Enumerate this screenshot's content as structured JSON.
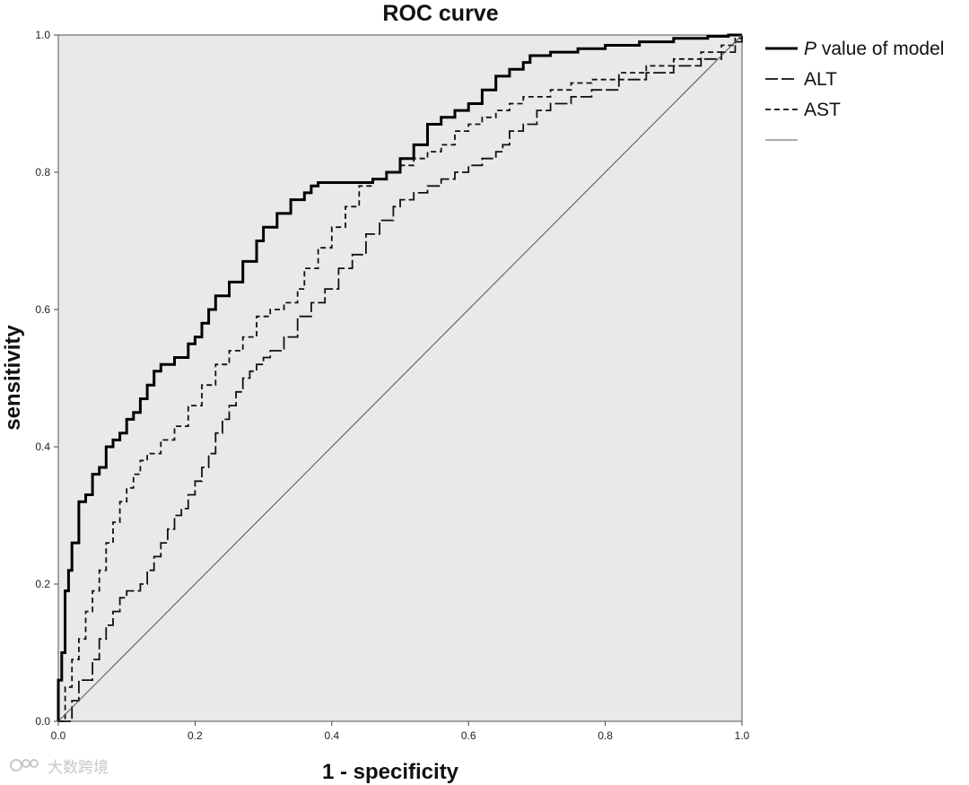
{
  "chart_data": {
    "type": "line",
    "title": "ROC curve",
    "xlabel": "1 - specificity",
    "ylabel": "sensitivity",
    "xlim": [
      0.0,
      1.0
    ],
    "ylim": [
      0.0,
      1.0
    ],
    "xticks": [
      "0.0",
      "0.2",
      "0.4",
      "0.6",
      "0.8",
      "1.0"
    ],
    "yticks": [
      "0.0",
      "0.2",
      "0.4",
      "0.6",
      "0.8",
      "1.0"
    ],
    "grid": false,
    "legend_position": "outside-right-top",
    "series": [
      {
        "name": "P value of model",
        "legend_prefix": "P",
        "legend_suffix": " value of model",
        "style": "solid-thick",
        "x": [
          0.0,
          0.0,
          0.005,
          0.01,
          0.015,
          0.02,
          0.03,
          0.04,
          0.05,
          0.06,
          0.07,
          0.08,
          0.09,
          0.1,
          0.11,
          0.12,
          0.13,
          0.14,
          0.15,
          0.17,
          0.19,
          0.2,
          0.21,
          0.22,
          0.23,
          0.25,
          0.27,
          0.29,
          0.3,
          0.32,
          0.34,
          0.36,
          0.37,
          0.38,
          0.4,
          0.44,
          0.46,
          0.48,
          0.5,
          0.52,
          0.54,
          0.56,
          0.58,
          0.6,
          0.62,
          0.64,
          0.66,
          0.68,
          0.69,
          0.72,
          0.76,
          0.8,
          0.85,
          0.9,
          0.95,
          0.98,
          1.0
        ],
        "y": [
          0.0,
          0.06,
          0.1,
          0.19,
          0.22,
          0.26,
          0.32,
          0.33,
          0.36,
          0.37,
          0.4,
          0.41,
          0.42,
          0.44,
          0.45,
          0.47,
          0.49,
          0.51,
          0.52,
          0.53,
          0.55,
          0.56,
          0.58,
          0.6,
          0.62,
          0.64,
          0.67,
          0.7,
          0.72,
          0.74,
          0.76,
          0.77,
          0.78,
          0.785,
          0.785,
          0.785,
          0.79,
          0.8,
          0.82,
          0.84,
          0.87,
          0.88,
          0.89,
          0.9,
          0.92,
          0.94,
          0.95,
          0.96,
          0.97,
          0.975,
          0.98,
          0.985,
          0.99,
          0.995,
          0.998,
          1.0,
          1.0
        ]
      },
      {
        "name": "ALT",
        "legend_prefix": "",
        "legend_suffix": "ALT",
        "style": "long-dash",
        "x": [
          0.0,
          0.02,
          0.03,
          0.05,
          0.06,
          0.07,
          0.08,
          0.09,
          0.1,
          0.12,
          0.13,
          0.14,
          0.15,
          0.16,
          0.17,
          0.18,
          0.19,
          0.2,
          0.21,
          0.22,
          0.23,
          0.24,
          0.25,
          0.26,
          0.27,
          0.28,
          0.29,
          0.3,
          0.31,
          0.33,
          0.35,
          0.37,
          0.39,
          0.41,
          0.43,
          0.45,
          0.47,
          0.49,
          0.5,
          0.52,
          0.54,
          0.56,
          0.58,
          0.6,
          0.62,
          0.64,
          0.65,
          0.66,
          0.68,
          0.7,
          0.72,
          0.75,
          0.78,
          0.82,
          0.86,
          0.9,
          0.94,
          0.97,
          0.99,
          1.0
        ],
        "y": [
          0.0,
          0.03,
          0.06,
          0.09,
          0.12,
          0.14,
          0.16,
          0.18,
          0.19,
          0.2,
          0.22,
          0.24,
          0.26,
          0.28,
          0.3,
          0.31,
          0.33,
          0.35,
          0.37,
          0.39,
          0.42,
          0.44,
          0.46,
          0.48,
          0.5,
          0.51,
          0.52,
          0.53,
          0.54,
          0.56,
          0.59,
          0.61,
          0.63,
          0.66,
          0.68,
          0.71,
          0.73,
          0.75,
          0.76,
          0.77,
          0.78,
          0.79,
          0.8,
          0.81,
          0.82,
          0.83,
          0.84,
          0.86,
          0.87,
          0.89,
          0.9,
          0.91,
          0.92,
          0.935,
          0.945,
          0.955,
          0.965,
          0.975,
          0.99,
          1.0
        ]
      },
      {
        "name": "AST",
        "legend_prefix": "",
        "legend_suffix": "AST",
        "style": "short-dash",
        "x": [
          0.0,
          0.01,
          0.02,
          0.03,
          0.04,
          0.05,
          0.06,
          0.07,
          0.08,
          0.09,
          0.1,
          0.11,
          0.12,
          0.13,
          0.15,
          0.17,
          0.19,
          0.21,
          0.23,
          0.25,
          0.27,
          0.29,
          0.31,
          0.33,
          0.35,
          0.36,
          0.38,
          0.4,
          0.42,
          0.44,
          0.46,
          0.48,
          0.5,
          0.52,
          0.54,
          0.56,
          0.58,
          0.6,
          0.62,
          0.64,
          0.66,
          0.68,
          0.7,
          0.72,
          0.75,
          0.78,
          0.82,
          0.86,
          0.9,
          0.94,
          0.97,
          0.99,
          1.0
        ],
        "y": [
          0.0,
          0.05,
          0.09,
          0.12,
          0.16,
          0.19,
          0.22,
          0.26,
          0.29,
          0.32,
          0.34,
          0.36,
          0.38,
          0.39,
          0.41,
          0.43,
          0.46,
          0.49,
          0.52,
          0.54,
          0.56,
          0.59,
          0.6,
          0.61,
          0.63,
          0.66,
          0.69,
          0.72,
          0.75,
          0.78,
          0.79,
          0.8,
          0.81,
          0.82,
          0.83,
          0.84,
          0.86,
          0.87,
          0.88,
          0.89,
          0.9,
          0.91,
          0.91,
          0.92,
          0.93,
          0.935,
          0.945,
          0.955,
          0.965,
          0.975,
          0.985,
          0.995,
          1.0
        ]
      },
      {
        "name": "",
        "legend_prefix": "",
        "legend_suffix": "",
        "style": "reference-line",
        "x": [
          0.0,
          1.0
        ],
        "y": [
          0.0,
          1.0
        ]
      }
    ]
  },
  "watermark": {
    "icon": "loop-logo-icon",
    "text": "大数跨境"
  }
}
